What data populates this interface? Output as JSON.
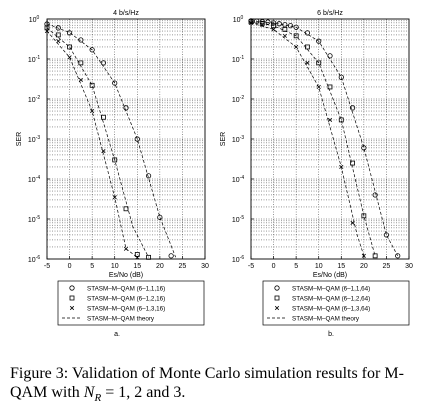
{
  "caption": {
    "label": "Figure 3:",
    "text_before": "Validation of Monte Carlo simulation results for M-QAM with",
    "symbol": "N",
    "symbol_sub": "R",
    "text_after": "= 1, 2 and 3."
  },
  "chart_data": [
    {
      "panel_label": "a.",
      "type": "scatter",
      "title": "4 b/s/Hz",
      "xlabel": "Es/No (dB)",
      "ylabel": "SER",
      "xlim": [
        -5,
        30
      ],
      "ylim_log10": [
        -6,
        0
      ],
      "y_scale": "log",
      "grid": true,
      "x_ticks": [
        "-5",
        "0",
        "5",
        "10",
        "15",
        "20",
        "25",
        "30"
      ],
      "y_ticks": [
        {
          "mant": "10",
          "exp": "0"
        },
        {
          "mant": "10",
          "exp": "-1"
        },
        {
          "mant": "10",
          "exp": "-2"
        },
        {
          "mant": "10",
          "exp": "-3"
        },
        {
          "mant": "10",
          "exp": "-4"
        },
        {
          "mant": "10",
          "exp": "-5"
        },
        {
          "mant": "10",
          "exp": "-6"
        }
      ],
      "legend": {
        "placement": "below",
        "entries": [
          {
            "marker": "o",
            "label": "STASM–M–QAM (6–1,1,16)"
          },
          {
            "marker": "s",
            "label": "STASM–M–QAM (6–1,2,16)"
          },
          {
            "marker": "x",
            "label": "STASM–M–QAM (6–1,3,16)"
          },
          {
            "marker": "dash",
            "label": "STASM–M–QAM theory"
          }
        ]
      },
      "series": [
        {
          "marker": "o",
          "x": [
            -5,
            -2.5,
            0,
            2.5,
            5,
            7.5,
            10,
            12.5,
            15,
            17.5,
            20,
            22.5
          ],
          "y": [
            0.75,
            0.6,
            0.45,
            0.3,
            0.17,
            0.08,
            0.025,
            0.006,
            0.001,
            0.00012,
            1.1e-05,
            1.2e-06
          ]
        },
        {
          "marker": "s",
          "x": [
            -5,
            -2.5,
            0,
            2.5,
            5,
            7.5,
            10,
            12.5,
            15,
            17.5
          ],
          "y": [
            0.6,
            0.4,
            0.2,
            0.08,
            0.022,
            0.0035,
            0.0003,
            1.8e-05,
            1.3e-06,
            1.1e-06
          ]
        },
        {
          "marker": "x",
          "x": [
            -5,
            -2.5,
            0,
            2.5,
            5,
            7.5,
            10,
            12.5,
            15
          ],
          "y": [
            0.5,
            0.28,
            0.11,
            0.03,
            0.005,
            0.0005,
            3.5e-05,
            1.8e-06,
            1.1e-06
          ]
        },
        {
          "marker": "dash",
          "x": [
            -5,
            0,
            5,
            10,
            15,
            20,
            23.5
          ],
          "y": [
            0.76,
            0.46,
            0.17,
            0.025,
            0.001,
            1.1e-05,
            1.1e-06
          ]
        },
        {
          "marker": "dash",
          "x": [
            -5,
            0,
            5,
            10,
            14,
            17.5
          ],
          "y": [
            0.6,
            0.2,
            0.022,
            0.0003,
            6.5e-06,
            1.1e-06
          ]
        },
        {
          "marker": "dash",
          "x": [
            -5,
            0,
            5,
            10,
            12.5,
            15
          ],
          "y": [
            0.5,
            0.11,
            0.005,
            3.5e-05,
            1.8e-06,
            1.1e-06
          ]
        }
      ]
    },
    {
      "panel_label": "b.",
      "type": "scatter",
      "title": "6 b/s/Hz",
      "xlabel": "Es/No (dB)",
      "ylabel": "SER",
      "xlim": [
        -5,
        30
      ],
      "ylim_log10": [
        -6,
        0
      ],
      "y_scale": "log",
      "grid": true,
      "x_ticks": [
        "-5",
        "0",
        "5",
        "10",
        "15",
        "20",
        "25",
        "30"
      ],
      "y_ticks": [
        {
          "mant": "10",
          "exp": "0"
        },
        {
          "mant": "10",
          "exp": "-1"
        },
        {
          "mant": "10",
          "exp": "-2"
        },
        {
          "mant": "10",
          "exp": "-3"
        },
        {
          "mant": "10",
          "exp": "-4"
        },
        {
          "mant": "10",
          "exp": "-5"
        },
        {
          "mant": "10",
          "exp": "-6"
        }
      ],
      "legend": {
        "placement": "below",
        "entries": [
          {
            "marker": "o",
            "label": "STASM–M–QAM (6–1,1,64)"
          },
          {
            "marker": "s",
            "label": "STASM–M–QAM (6–1,2,64)"
          },
          {
            "marker": "x",
            "label": "STASM–M–QAM (6–1,3,64)"
          },
          {
            "marker": "dash",
            "label": "STASM–M–QAM theory"
          }
        ]
      },
      "series": [
        {
          "marker": "o",
          "x": [
            -5,
            -3.75,
            -2.5,
            -1.25,
            0,
            1.25,
            2.5,
            3.75,
            5,
            7.5,
            10,
            12.5,
            15,
            17.5,
            20,
            22.5,
            25,
            27.5
          ],
          "y": [
            0.9,
            0.88,
            0.86,
            0.84,
            0.8,
            0.76,
            0.72,
            0.68,
            0.62,
            0.45,
            0.28,
            0.12,
            0.035,
            0.006,
            0.0006,
            4e-05,
            4e-06,
            1.2e-06
          ]
        },
        {
          "marker": "s",
          "x": [
            -5,
            -2.5,
            0,
            2.5,
            5,
            7.5,
            10,
            12.5,
            15,
            17.5,
            20,
            22.5
          ],
          "y": [
            0.85,
            0.78,
            0.68,
            0.55,
            0.38,
            0.2,
            0.08,
            0.02,
            0.003,
            0.00025,
            1.2e-05,
            1.2e-06
          ]
        },
        {
          "marker": "x",
          "x": [
            -5,
            -2.5,
            0,
            2.5,
            5,
            7.5,
            10,
            12.5,
            15,
            17.5,
            20
          ],
          "y": [
            0.8,
            0.7,
            0.55,
            0.38,
            0.2,
            0.08,
            0.02,
            0.003,
            0.0002,
            8e-06,
            1.2e-06
          ]
        },
        {
          "marker": "dash",
          "x": [
            -5,
            0,
            5,
            10,
            15,
            20,
            25,
            27.5
          ],
          "y": [
            0.9,
            0.8,
            0.62,
            0.28,
            0.035,
            0.0006,
            4e-06,
            1.2e-06
          ]
        },
        {
          "marker": "dash",
          "x": [
            -5,
            0,
            5,
            10,
            15,
            20,
            22.5
          ],
          "y": [
            0.85,
            0.68,
            0.38,
            0.08,
            0.003,
            1.2e-05,
            1.2e-06
          ]
        },
        {
          "marker": "dash",
          "x": [
            -5,
            0,
            5,
            10,
            15,
            18.5,
            20
          ],
          "y": [
            0.8,
            0.55,
            0.2,
            0.02,
            0.0002,
            4e-06,
            1.2e-06
          ]
        }
      ]
    }
  ]
}
